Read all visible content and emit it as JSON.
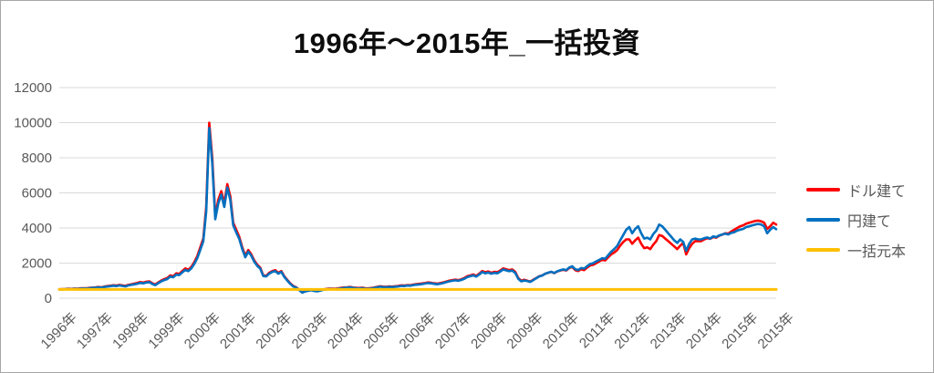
{
  "title": "1996年～2015年_一括投資",
  "chart_data": {
    "type": "line",
    "title": "1996年～2015年_一括投資",
    "xlabel": "",
    "ylabel": "",
    "ylim": [
      0,
      12000
    ],
    "y_ticks": [
      0,
      2000,
      4000,
      6000,
      8000,
      10000,
      12000
    ],
    "x_tick_labels": [
      "1996年",
      "1997年",
      "1998年",
      "1999年",
      "2000年",
      "2001年",
      "2002年",
      "2003年",
      "2004年",
      "2005年",
      "2006年",
      "2007年",
      "2008年",
      "2009年",
      "2010年",
      "2011年",
      "2012年",
      "2013年",
      "2014年",
      "2015年",
      "2015年"
    ],
    "x_unit": "month",
    "x_range": "1996-01 to 2015-12",
    "grid": true,
    "legend_position": "right",
    "colors": {
      "grid": "#d9d9d9",
      "axis_text": "#595959",
      "border": "#a6a6a6",
      "title_text": "#0d0d0d"
    },
    "series": [
      {
        "name": "ドル建て",
        "color": "#ff0000",
        "values": [
          510,
          520,
          525,
          540,
          530,
          550,
          545,
          560,
          570,
          565,
          590,
          605,
          615,
          640,
          620,
          660,
          690,
          710,
          740,
          720,
          760,
          730,
          700,
          760,
          790,
          830,
          870,
          920,
          890,
          940,
          960,
          850,
          780,
          900,
          1010,
          1090,
          1150,
          1300,
          1250,
          1420,
          1380,
          1550,
          1700,
          1620,
          1780,
          2050,
          2400,
          2900,
          3400,
          5200,
          10000,
          8000,
          4700,
          5600,
          6100,
          5400,
          6500,
          5800,
          4300,
          3900,
          3500,
          2900,
          2420,
          2750,
          2500,
          2150,
          1900,
          1750,
          1300,
          1280,
          1450,
          1550,
          1600,
          1450,
          1550,
          1250,
          1050,
          850,
          700,
          620,
          480,
          330,
          400,
          440,
          470,
          430,
          410,
          450,
          500,
          530,
          550,
          545,
          540,
          565,
          590,
          615,
          625,
          640,
          610,
          590,
          580,
          600,
          570,
          560,
          580,
          610,
          650,
          680,
          660,
          650,
          670,
          660,
          680,
          700,
          730,
          720,
          750,
          740,
          780,
          800,
          820,
          840,
          870,
          900,
          880,
          850,
          830,
          860,
          900,
          950,
          1000,
          1030,
          1060,
          1030,
          1080,
          1150,
          1250,
          1300,
          1350,
          1280,
          1400,
          1550,
          1480,
          1520,
          1450,
          1500,
          1480,
          1580,
          1700,
          1650,
          1600,
          1640,
          1500,
          1150,
          1000,
          1050,
          1000,
          950,
          1050,
          1150,
          1250,
          1300,
          1400,
          1450,
          1500,
          1430,
          1520,
          1580,
          1620,
          1580,
          1720,
          1780,
          1600,
          1550,
          1650,
          1600,
          1750,
          1870,
          1900,
          2000,
          2100,
          2200,
          2150,
          2330,
          2500,
          2600,
          2750,
          3000,
          3200,
          3350,
          3350,
          3100,
          3300,
          3450,
          3100,
          2850,
          2900,
          2800,
          3050,
          3250,
          3600,
          3550,
          3400,
          3250,
          3100,
          2950,
          2800,
          3000,
          3150,
          2500,
          2850,
          3100,
          3250,
          3250,
          3250,
          3350,
          3420,
          3380,
          3480,
          3450,
          3560,
          3620,
          3700,
          3680,
          3800,
          3900,
          4000,
          4100,
          4150,
          4250,
          4300,
          4350,
          4400,
          4420,
          4380,
          4300,
          3950,
          4100,
          4300,
          4200
        ]
      },
      {
        "name": "円建て",
        "color": "#0070c0",
        "values": [
          500,
          505,
          512,
          526,
          518,
          535,
          530,
          545,
          558,
          552,
          574,
          590,
          598,
          620,
          602,
          638,
          665,
          685,
          710,
          692,
          728,
          700,
          672,
          728,
          756,
          792,
          828,
          875,
          848,
          892,
          912,
          810,
          745,
          856,
          960,
          1036,
          1092,
          1232,
          1188,
          1348,
          1312,
          1472,
          1612,
          1542,
          1692,
          1952,
          2280,
          2760,
          3250,
          4950,
          9700,
          7700,
          4500,
          5400,
          5900,
          5200,
          6300,
          5600,
          4150,
          3750,
          3380,
          2800,
          2330,
          2650,
          2420,
          2080,
          1840,
          1690,
          1260,
          1240,
          1400,
          1500,
          1545,
          1400,
          1500,
          1210,
          1010,
          820,
          670,
          595,
          460,
          315,
          385,
          425,
          450,
          412,
          392,
          430,
          478,
          508,
          528,
          522,
          516,
          540,
          565,
          590,
          600,
          615,
          585,
          565,
          555,
          575,
          545,
          535,
          555,
          585,
          625,
          652,
          632,
          622,
          642,
          632,
          652,
          672,
          700,
          690,
          720,
          710,
          748,
          768,
          786,
          806,
          835,
          864,
          845,
          815,
          796,
          825,
          864,
          912,
          960,
          990,
          1018,
          990,
          1038,
          1105,
          1200,
          1250,
          1298,
          1230,
          1345,
          1490,
          1420,
          1460,
          1395,
          1442,
          1420,
          1518,
          1635,
          1585,
          1538,
          1576,
          1440,
          1105,
          960,
          1010,
          980,
          930,
          1030,
          1140,
          1240,
          1295,
          1400,
          1455,
          1505,
          1440,
          1530,
          1590,
          1640,
          1600,
          1750,
          1820,
          1650,
          1610,
          1720,
          1690,
          1830,
          1950,
          2000,
          2100,
          2180,
          2280,
          2250,
          2450,
          2650,
          2800,
          2980,
          3300,
          3600,
          3900,
          4050,
          3700,
          3950,
          4100,
          3700,
          3400,
          3450,
          3350,
          3650,
          3850,
          4200,
          4100,
          3900,
          3700,
          3500,
          3300,
          3150,
          3350,
          3200,
          2700,
          3100,
          3350,
          3400,
          3350,
          3350,
          3420,
          3460,
          3400,
          3520,
          3480,
          3580,
          3630,
          3680,
          3630,
          3720,
          3760,
          3850,
          3900,
          3950,
          4050,
          4100,
          4150,
          4200,
          4230,
          4200,
          4100,
          3700,
          3900,
          4050,
          3930
        ]
      },
      {
        "name": "一括元本",
        "color": "#ffc000",
        "constant": 500
      }
    ]
  }
}
